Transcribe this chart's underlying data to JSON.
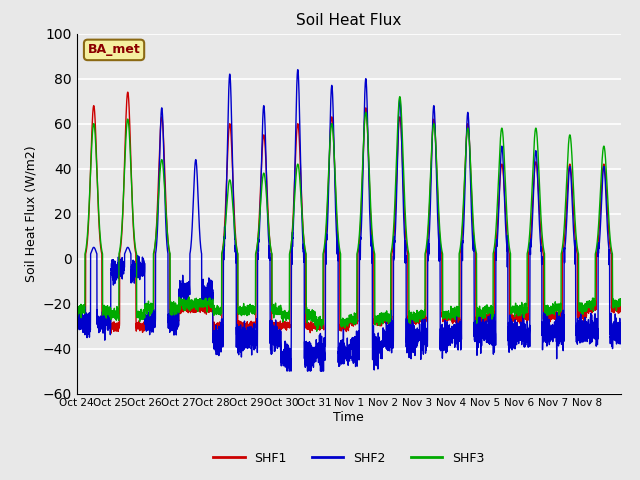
{
  "title": "Soil Heat Flux",
  "ylabel": "Soil Heat Flux (W/m2)",
  "xlabel": "Time",
  "ylim": [
    -60,
    100
  ],
  "yticks": [
    -60,
    -40,
    -20,
    0,
    20,
    40,
    60,
    80,
    100
  ],
  "background_color": "#e8e8e8",
  "grid_color": "white",
  "annotation_text": "BA_met",
  "annotation_bg": "#f5f0a0",
  "annotation_border": "#8b6914",
  "shf1_color": "#cc0000",
  "shf2_color": "#0000cc",
  "shf3_color": "#00aa00",
  "line_width": 1.0,
  "x_tick_labels": [
    "Oct 24",
    "Oct 25",
    "Oct 26",
    "Oct 27",
    "Oct 28",
    "Oct 29",
    "Oct 30",
    "Oct 31",
    "Nov 1",
    "Nov 2",
    "Nov 3",
    "Nov 4",
    "Nov 5",
    "Nov 6",
    "Nov 7",
    "Nov 8"
  ],
  "n_days": 16,
  "points_per_day": 288
}
